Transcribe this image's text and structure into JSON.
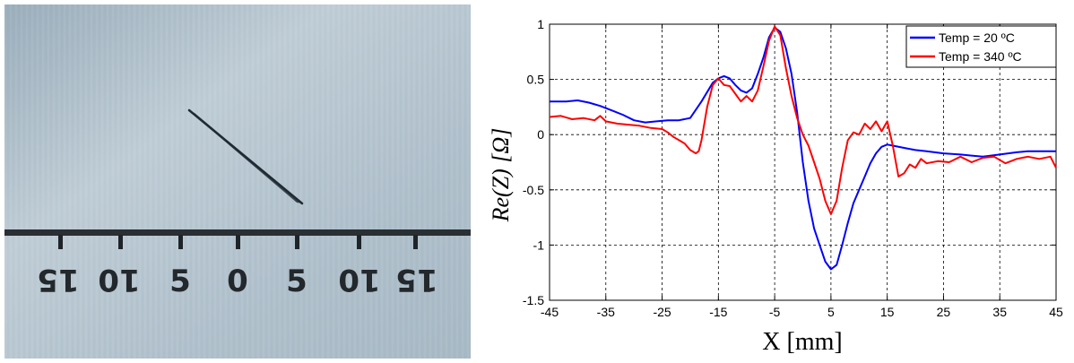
{
  "photo": {
    "scale_labels": [
      "15",
      "10",
      "5",
      "0",
      "5",
      "10",
      "15"
    ]
  },
  "chart_data": {
    "type": "line",
    "xlabel": "X [mm]",
    "ylabel": "Re(Z) [Ω]",
    "xlim": [
      -45,
      45
    ],
    "ylim": [
      -1.5,
      1
    ],
    "xticks": [
      -45,
      -35,
      -25,
      -15,
      -5,
      5,
      15,
      25,
      35,
      45
    ],
    "yticks": [
      -1.5,
      -1,
      -0.5,
      0,
      0.5,
      1
    ],
    "xtick_labels": [
      "-45",
      "-35",
      "-25",
      "-15",
      "-5",
      "5",
      "15",
      "25",
      "35",
      "45"
    ],
    "ytick_labels": [
      "-1.5",
      "-1",
      "-0.5",
      "0",
      "0.5",
      "1"
    ],
    "grid": true,
    "legend_position": "top-right",
    "series": [
      {
        "name": "Temp = 20 ºC",
        "color": "#0000ff",
        "x": [
          -45,
          -42,
          -40,
          -38,
          -36,
          -34,
          -32,
          -30,
          -28,
          -26,
          -24,
          -22,
          -20,
          -18,
          -16,
          -15,
          -14,
          -13,
          -12,
          -11,
          -10,
          -9,
          -8,
          -7,
          -6,
          -5,
          -4,
          -3,
          -2,
          -1,
          0,
          1,
          2,
          3,
          4,
          5,
          6,
          7,
          8,
          9,
          10,
          11,
          12,
          13,
          14,
          15,
          16,
          18,
          20,
          22,
          25,
          28,
          30,
          32,
          35,
          38,
          40,
          42,
          45
        ],
        "y": [
          0.3,
          0.3,
          0.31,
          0.29,
          0.26,
          0.22,
          0.18,
          0.13,
          0.11,
          0.12,
          0.13,
          0.13,
          0.15,
          0.3,
          0.47,
          0.51,
          0.53,
          0.51,
          0.45,
          0.4,
          0.38,
          0.42,
          0.55,
          0.7,
          0.88,
          0.97,
          0.93,
          0.78,
          0.55,
          0.2,
          -0.25,
          -0.6,
          -0.85,
          -1.0,
          -1.15,
          -1.22,
          -1.18,
          -1.0,
          -0.8,
          -0.62,
          -0.5,
          -0.38,
          -0.26,
          -0.17,
          -0.11,
          -0.09,
          -0.1,
          -0.12,
          -0.14,
          -0.15,
          -0.17,
          -0.18,
          -0.19,
          -0.2,
          -0.18,
          -0.16,
          -0.15,
          -0.15,
          -0.15
        ]
      },
      {
        "name": "Temp = 340 ºC",
        "color": "#ff0000",
        "x": [
          -45,
          -43,
          -41,
          -39,
          -37,
          -36,
          -35,
          -33,
          -31,
          -29,
          -27,
          -25,
          -24,
          -23,
          -22,
          -21,
          -20,
          -19,
          -18.5,
          -18,
          -17,
          -16,
          -15,
          -14,
          -13,
          -12,
          -11,
          -10,
          -9,
          -8,
          -7,
          -6,
          -5,
          -4,
          -3,
          -2,
          -1,
          0,
          1,
          2,
          3,
          4,
          5,
          6,
          7,
          8,
          9,
          10,
          11,
          12,
          13,
          14,
          15,
          16,
          17,
          18,
          19,
          20,
          21,
          22,
          24,
          26,
          28,
          30,
          32,
          34,
          36,
          38,
          40,
          42,
          44,
          45
        ],
        "y": [
          0.16,
          0.17,
          0.14,
          0.15,
          0.13,
          0.17,
          0.12,
          0.1,
          0.09,
          0.08,
          0.06,
          0.05,
          0.02,
          -0.02,
          -0.05,
          -0.08,
          -0.14,
          -0.17,
          -0.15,
          -0.05,
          0.25,
          0.45,
          0.51,
          0.45,
          0.44,
          0.37,
          0.3,
          0.35,
          0.3,
          0.4,
          0.62,
          0.85,
          0.98,
          0.9,
          0.6,
          0.35,
          0.15,
          0.0,
          -0.1,
          -0.25,
          -0.4,
          -0.6,
          -0.72,
          -0.6,
          -0.3,
          -0.05,
          0.02,
          0.0,
          0.1,
          0.05,
          0.12,
          0.03,
          0.12,
          -0.1,
          -0.38,
          -0.35,
          -0.27,
          -0.3,
          -0.22,
          -0.26,
          -0.24,
          -0.25,
          -0.2,
          -0.25,
          -0.21,
          -0.2,
          -0.26,
          -0.22,
          -0.2,
          -0.22,
          -0.2,
          -0.3
        ]
      }
    ]
  }
}
